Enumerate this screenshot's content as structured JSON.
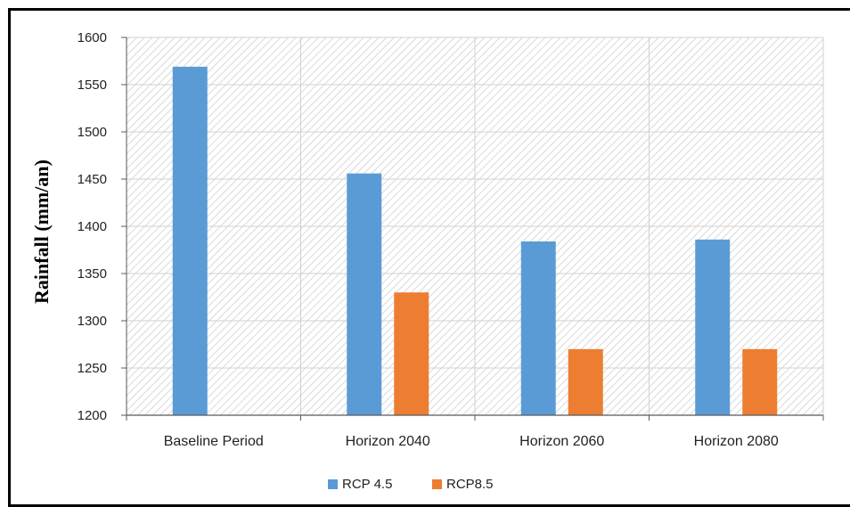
{
  "chart_data": {
    "type": "bar",
    "title": "",
    "xlabel": "",
    "ylabel": "Rainfall (mm/an)",
    "categories": [
      "Baseline Period",
      "Horizon 2040",
      "Horizon 2060",
      "Horizon 2080"
    ],
    "series": [
      {
        "name": "RCP 4.5",
        "color": "#5b9bd5",
        "values": [
          1569,
          1456,
          1384,
          1386
        ]
      },
      {
        "name": "RCP8.5",
        "color": "#ed7d31",
        "values": [
          null,
          1330,
          1270,
          1270
        ]
      }
    ],
    "yticks": [
      "1200",
      "1250",
      "1300",
      "1350",
      "1400",
      "1450",
      "1500",
      "1550",
      "1600"
    ],
    "ylim": [
      1200,
      1600
    ],
    "grid": true,
    "plot_background": "hatched",
    "legend_position": "bottom"
  }
}
